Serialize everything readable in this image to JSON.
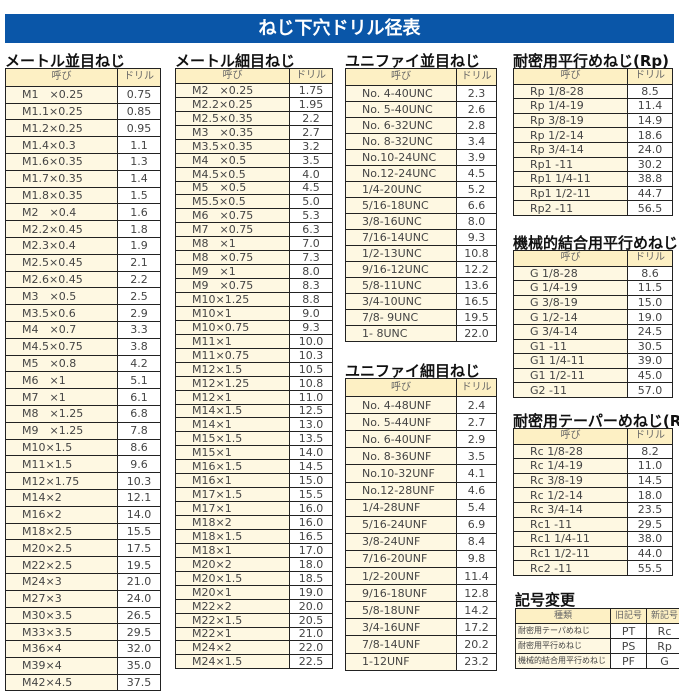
{
  "title": "ねじ下穴ドリル径表",
  "header": {
    "name": "呼び",
    "drill": "ドリル"
  },
  "tables": [
    {
      "id": "metric-coarse",
      "title": "メートル並目ねじ",
      "rows": [
        [
          "M1　×0.25",
          "0.75"
        ],
        [
          "M1.1×0.25",
          "0.85"
        ],
        [
          "M1.2×0.25",
          "0.95"
        ],
        [
          "M1.4×0.3",
          "1.1"
        ],
        [
          "M1.6×0.35",
          "1.3"
        ],
        [
          "M1.7×0.35",
          "1.4"
        ],
        [
          "M1.8×0.35",
          "1.5"
        ],
        [
          "M2　×0.4",
          "1.6"
        ],
        [
          "M2.2×0.45",
          "1.8"
        ],
        [
          "M2.3×0.4",
          "1.9"
        ],
        [
          "M2.5×0.45",
          "2.1"
        ],
        [
          "M2.6×0.45",
          "2.2"
        ],
        [
          "M3　×0.5",
          "2.5"
        ],
        [
          "M3.5×0.6",
          "2.9"
        ],
        [
          "M4　×0.7",
          "3.3"
        ],
        [
          "M4.5×0.75",
          "3.8"
        ],
        [
          "M5　×0.8",
          "4.2"
        ],
        [
          "M6　×1",
          "5.1"
        ],
        [
          "M7　×1",
          "6.1"
        ],
        [
          "M8　×1.25",
          "6.8"
        ],
        [
          "M9　×1.25",
          "7.8"
        ],
        [
          "M10×1.5",
          "8.6"
        ],
        [
          "M11×1.5",
          "9.6"
        ],
        [
          "M12×1.75",
          "10.3"
        ],
        [
          "M14×2",
          "12.1"
        ],
        [
          "M16×2",
          "14.0"
        ],
        [
          "M18×2.5",
          "15.5"
        ],
        [
          "M20×2.5",
          "17.5"
        ],
        [
          "M22×2.5",
          "19.5"
        ],
        [
          "M24×3",
          "21.0"
        ],
        [
          "M27×3",
          "24.0"
        ],
        [
          "M30×3.5",
          "26.5"
        ],
        [
          "M33×3.5",
          "29.5"
        ],
        [
          "M36×4",
          "32.0"
        ],
        [
          "M39×4",
          "35.0"
        ],
        [
          "M42×4.5",
          "37.5"
        ]
      ]
    },
    {
      "id": "metric-fine",
      "title": "メートル細目ねじ",
      "rows": [
        [
          "M2　×0.25",
          "1.75"
        ],
        [
          "M2.2×0.25",
          "1.95"
        ],
        [
          "M2.5×0.35",
          "2.2"
        ],
        [
          "M3　×0.35",
          "2.7"
        ],
        [
          "M3.5×0.35",
          "3.2"
        ],
        [
          "M4　×0.5",
          "3.5"
        ],
        [
          "M4.5×0.5",
          "4.0"
        ],
        [
          "M5　×0.5",
          "4.5"
        ],
        [
          "M5.5×0.5",
          "5.0"
        ],
        [
          "M6　×0.75",
          "5.3"
        ],
        [
          "M7　×0.75",
          "6.3"
        ],
        [
          "M8　×1",
          "7.0"
        ],
        [
          "M8　×0.75",
          "7.3"
        ],
        [
          "M9　×1",
          "8.0"
        ],
        [
          "M9　×0.75",
          "8.3"
        ],
        [
          "M10×1.25",
          "8.8"
        ],
        [
          "M10×1",
          "9.0"
        ],
        [
          "M10×0.75",
          "9.3"
        ],
        [
          "M11×1",
          "10.0"
        ],
        [
          "M11×0.75",
          "10.3"
        ],
        [
          "M12×1.5",
          "10.5"
        ],
        [
          "M12×1.25",
          "10.8"
        ],
        [
          "M12×1",
          "11.0"
        ],
        [
          "M14×1.5",
          "12.5"
        ],
        [
          "M14×1",
          "13.0"
        ],
        [
          "M15×1.5",
          "13.5"
        ],
        [
          "M15×1",
          "14.0"
        ],
        [
          "M16×1.5",
          "14.5"
        ],
        [
          "M16×1",
          "15.0"
        ],
        [
          "M17×1.5",
          "15.5"
        ],
        [
          "M17×1",
          "16.0"
        ],
        [
          "M18×2",
          "16.0"
        ],
        [
          "M18×1.5",
          "16.5"
        ],
        [
          "M18×1",
          "17.0"
        ],
        [
          "M20×2",
          "18.0"
        ],
        [
          "M20×1.5",
          "18.5"
        ],
        [
          "M20×1",
          "19.0"
        ],
        [
          "M22×2",
          "20.0"
        ],
        [
          "M22×1.5",
          "20.5"
        ],
        [
          "M22×1",
          "21.0"
        ],
        [
          "M24×2",
          "22.0"
        ],
        [
          "M24×1.5",
          "22.5"
        ]
      ]
    },
    {
      "id": "unc",
      "title": "ユニファイ並目ねじ",
      "rows": [
        [
          "No.  4-40UNC",
          "2.3"
        ],
        [
          "No.  5-40UNC",
          "2.6"
        ],
        [
          "No.  6-32UNC",
          "2.8"
        ],
        [
          "No.  8-32UNC",
          "3.4"
        ],
        [
          "No.10-24UNC",
          "3.9"
        ],
        [
          "No.12-24UNC",
          "4.5"
        ],
        [
          "1/4-20UNC",
          "5.2"
        ],
        [
          "5/16-18UNC",
          "6.6"
        ],
        [
          "3/8-16UNC",
          "8.0"
        ],
        [
          "7/16-14UNC",
          "9.3"
        ],
        [
          "1/2-13UNC",
          "10.8"
        ],
        [
          "9/16-12UNC",
          "12.2"
        ],
        [
          "5/8-11UNC",
          "13.6"
        ],
        [
          "3/4-10UNC",
          "16.5"
        ],
        [
          "7/8- 9UNC",
          "19.5"
        ],
        [
          "1- 8UNC",
          "22.0"
        ]
      ]
    },
    {
      "id": "unf",
      "title": "ユニファイ細目ねじ",
      "rows": [
        [
          "No.  4-48UNF",
          "2.4"
        ],
        [
          "No.  5-44UNF",
          "2.7"
        ],
        [
          "No.  6-40UNF",
          "2.9"
        ],
        [
          "No.  8-36UNF",
          "3.5"
        ],
        [
          "No.10-32UNF",
          "4.1"
        ],
        [
          "No.12-28UNF",
          "4.6"
        ],
        [
          "1/4-28UNF",
          "5.4"
        ],
        [
          "5/16-24UNF",
          "6.9"
        ],
        [
          "3/8-24UNF",
          "8.4"
        ],
        [
          "7/16-20UNF",
          "9.8"
        ],
        [
          "1/2-20UNF",
          "11.4"
        ],
        [
          "9/16-18UNF",
          "12.8"
        ],
        [
          "5/8-18UNF",
          "14.2"
        ],
        [
          "3/4-16UNF",
          "17.2"
        ],
        [
          "7/8-14UNF",
          "20.2"
        ],
        [
          "1-12UNF",
          "23.2"
        ]
      ]
    },
    {
      "id": "rp",
      "title": "耐密用平行めねじ(Rp)",
      "rows": [
        [
          "Rp 1/8-28",
          "8.5"
        ],
        [
          "Rp 1/4-19",
          "11.4"
        ],
        [
          "Rp 3/8-19",
          "14.9"
        ],
        [
          "Rp 1/2-14",
          "18.6"
        ],
        [
          "Rp 3/4-14",
          "24.0"
        ],
        [
          "Rp1  -11",
          "30.2"
        ],
        [
          "Rp1 1/4-11",
          "38.8"
        ],
        [
          "Rp1 1/2-11",
          "44.7"
        ],
        [
          "Rp2  -11",
          "56.5"
        ]
      ]
    },
    {
      "id": "g",
      "title": "機械的結合用平行めねじ(G)",
      "rows": [
        [
          "G 1/8-28",
          "8.6"
        ],
        [
          "G 1/4-19",
          "11.5"
        ],
        [
          "G 3/8-19",
          "15.0"
        ],
        [
          "G 1/2-14",
          "19.0"
        ],
        [
          "G 3/4-14",
          "24.5"
        ],
        [
          "G1  -11",
          "30.5"
        ],
        [
          "G1 1/4-11",
          "39.0"
        ],
        [
          "G1 1/2-11",
          "45.0"
        ],
        [
          "G2  -11",
          "57.0"
        ]
      ]
    },
    {
      "id": "rc",
      "title": "耐密用テーパーめねじ(Rc)",
      "rows": [
        [
          "Rc 1/8-28",
          "8.2"
        ],
        [
          "Rc 1/4-19",
          "11.0"
        ],
        [
          "Rc 3/8-19",
          "14.5"
        ],
        [
          "Rc 1/2-14",
          "18.0"
        ],
        [
          "Rc 3/4-14",
          "23.5"
        ],
        [
          "Rc1  -11",
          "29.5"
        ],
        [
          "Rc1 1/4-11",
          "38.0"
        ],
        [
          "Rc1 1/2-11",
          "44.0"
        ],
        [
          "Rc2  -11",
          "55.5"
        ]
      ]
    }
  ],
  "symbols": {
    "title": "記号変更",
    "headers": [
      "種類",
      "旧記号",
      "新記号"
    ],
    "rows": [
      [
        "耐密用テーパめねじ",
        "PT",
        "Rc"
      ],
      [
        "耐密用平行めねじ",
        "PS",
        "Rp"
      ],
      [
        "機械的結合用平行めねじ",
        "PF",
        "G"
      ]
    ]
  }
}
